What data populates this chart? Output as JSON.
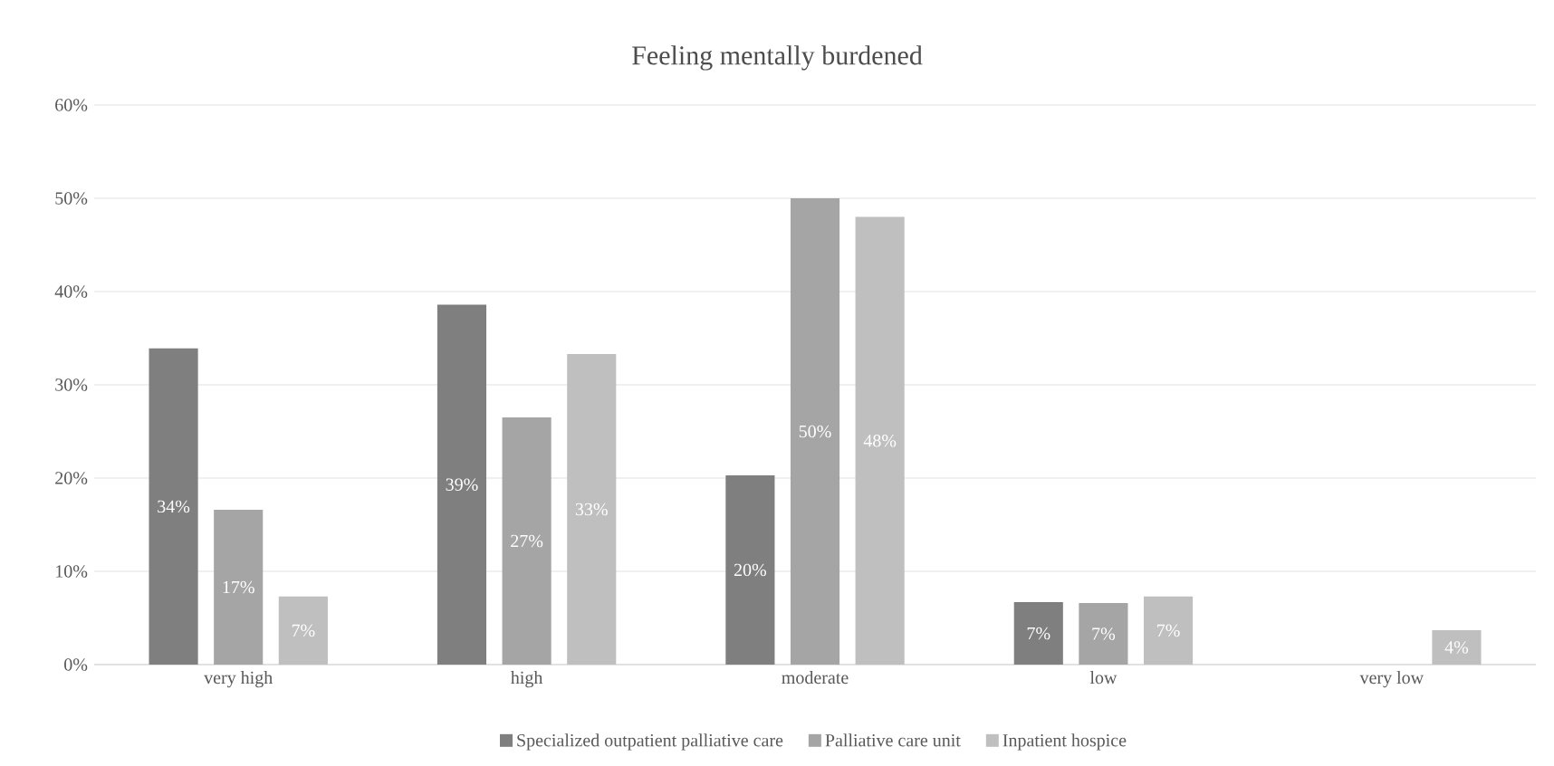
{
  "chart_data": {
    "type": "bar",
    "title": "Feeling mentally burdened",
    "categories": [
      "very high",
      "high",
      "moderate",
      "low",
      "very low"
    ],
    "series": [
      {
        "name": "Specialized outpatient palliative care",
        "color": "#7f7f7f",
        "values": [
          33.9,
          38.6,
          20.3,
          6.7,
          null
        ],
        "value_labels": [
          "34%",
          "39%",
          "20%",
          "7%",
          null
        ]
      },
      {
        "name": "Palliative care unit",
        "color": "#a5a5a5",
        "values": [
          16.6,
          26.5,
          50,
          6.6,
          null
        ],
        "value_labels": [
          "17%",
          "27%",
          "50%",
          "7%",
          null
        ]
      },
      {
        "name": "Inpatient hospice",
        "color": "#bfbfbf",
        "values": [
          7.3,
          33.3,
          48,
          7.3,
          3.7
        ],
        "value_labels": [
          "7%",
          "33%",
          "48%",
          "7%",
          "4%"
        ]
      }
    ],
    "ylim": [
      0,
      60
    ],
    "yticks": [
      {
        "value": 0,
        "label": "0%"
      },
      {
        "value": 10,
        "label": "10%"
      },
      {
        "value": 20,
        "label": "20%"
      },
      {
        "value": 30,
        "label": "30%"
      },
      {
        "value": 40,
        "label": "40%"
      },
      {
        "value": 50,
        "label": "50%"
      },
      {
        "value": 60,
        "label": "60%"
      }
    ],
    "grid": "y",
    "legend": "bottom"
  }
}
